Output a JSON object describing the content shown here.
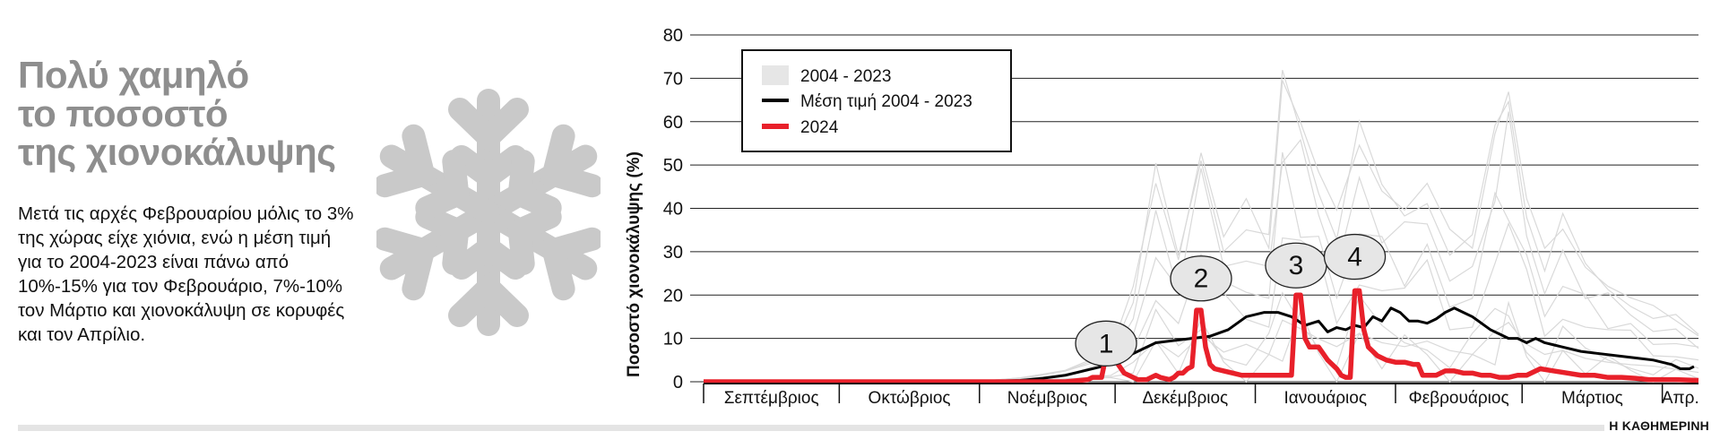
{
  "headline": {
    "line1": "Πολύ χαμηλό",
    "line2": "το ποσοστό",
    "line3": "της χιονοκάλυψης"
  },
  "body_text": "Μετά τις αρχές Φεβρουαρίου μόλις το 3% της χώρας είχε χιόνια, ενώ η μέση τιμή για το 2004-2023 είναι πάνω από 10%-15% για τον Φεβρουάριο, 7%-10% τον Μάρτιο και χιονοκάλυψη σε κορυφές και τον Απρίλιο.",
  "brand": "Η ΚΑΘΗΜΕΡΙΝΗ",
  "icons": {
    "snowflake": "snowflake-icon"
  },
  "colors": {
    "headline": "#8e8e8e",
    "snowflake": "#c9c9c9",
    "series_2024": "#e8202a",
    "mean": "#000000",
    "historical": "#d4d4d4",
    "callout_fill": "#e6e6e6"
  },
  "chart_data": {
    "type": "line",
    "title": "",
    "ylabel": "Ποσοστό χιονοκάλυψης (%)",
    "xlabel": "",
    "ylim": [
      0,
      80
    ],
    "yticks": [
      0,
      10,
      20,
      30,
      40,
      50,
      60,
      70,
      80
    ],
    "grid": true,
    "legend_position": "top-left",
    "x_unit": "days since 1 September",
    "xlim": [
      0,
      220
    ],
    "x_month_boundaries": [
      0,
      30,
      61,
      91,
      122,
      153,
      181,
      212
    ],
    "month_labels": [
      {
        "label": "Σεπτέμβριος",
        "x": 15
      },
      {
        "label": "Οκτώβριος",
        "x": 45.5
      },
      {
        "label": "Νοέμβριος",
        "x": 76
      },
      {
        "label": "Δεκέμβριος",
        "x": 106.5
      },
      {
        "label": "Ιανουάριος",
        "x": 137.5
      },
      {
        "label": "Φεβρουάριος",
        "x": 167
      },
      {
        "label": "Μάρτιος",
        "x": 196.5
      },
      {
        "label": "Απρ.",
        "x": 216
      }
    ],
    "series": [
      {
        "name": "2004 - 2023",
        "style": "band",
        "note": "individual years, light grey lines",
        "x": [
          0,
          60,
          70,
          80,
          90,
          95,
          100,
          105,
          110,
          115,
          120,
          125,
          128,
          132,
          136,
          140,
          145,
          150,
          155,
          160,
          165,
          170,
          175,
          178,
          182,
          186,
          190,
          195,
          200,
          205,
          210,
          215,
          220
        ],
        "values": [
          0,
          0,
          1,
          3,
          8,
          25,
          52,
          32,
          60,
          38,
          48,
          35,
          79,
          68,
          55,
          45,
          62,
          50,
          45,
          52,
          40,
          35,
          65,
          76,
          48,
          35,
          40,
          30,
          25,
          22,
          20,
          16,
          12
        ]
      },
      {
        "name": "Μέση τιμή 2004 - 2023",
        "x": [
          0,
          60,
          70,
          75,
          80,
          84,
          88,
          92,
          96,
          100,
          104,
          108,
          112,
          116,
          120,
          124,
          127,
          130,
          133,
          136,
          138,
          140,
          142,
          144,
          146,
          148,
          150,
          152,
          154,
          156,
          158,
          160,
          162,
          164,
          166,
          168,
          170,
          172,
          174,
          176,
          178,
          180,
          182,
          184,
          186,
          188,
          190,
          194,
          198,
          202,
          206,
          210,
          214,
          216,
          218,
          219
        ],
        "values": [
          0,
          0,
          0.3,
          0.8,
          1.5,
          2.5,
          3.5,
          5,
          7,
          9,
          9.5,
          10,
          10.5,
          12,
          15,
          16,
          16,
          15,
          13,
          14,
          11.5,
          12.5,
          12,
          13,
          12.5,
          15,
          14,
          17,
          16,
          14,
          14,
          13.5,
          14.5,
          16,
          17,
          16,
          15,
          13.5,
          12,
          11,
          10,
          10,
          9,
          10,
          9,
          8.5,
          8,
          7,
          6.5,
          6,
          5.5,
          5,
          4,
          3,
          3,
          3.5
        ]
      },
      {
        "name": "2024",
        "x": [
          0,
          60,
          72,
          80,
          85,
          86,
          87,
          88,
          89,
          90,
          91,
          93,
          96,
          98,
          100,
          101,
          103,
          104,
          105,
          106,
          107,
          108,
          109,
          110,
          111,
          112,
          113,
          115,
          117,
          119,
          121,
          124,
          126,
          127,
          128,
          129,
          130,
          131,
          132,
          133,
          134,
          136,
          138,
          140,
          141,
          142,
          143,
          144,
          145,
          146,
          147,
          149,
          151,
          153,
          155,
          157,
          158,
          159,
          160,
          161,
          162,
          164,
          166,
          168,
          170,
          172,
          174,
          176,
          178,
          180,
          182,
          185,
          188,
          191,
          194,
          197,
          200,
          203,
          206,
          209,
          212,
          215,
          220
        ],
        "values": [
          0,
          0,
          0,
          0,
          0.5,
          1,
          1,
          1,
          6,
          6,
          5,
          2,
          0.5,
          0.5,
          1.5,
          1,
          0.5,
          1,
          2,
          2,
          3,
          3.5,
          16.5,
          16.5,
          8,
          4,
          3,
          2.5,
          2,
          1.5,
          1.5,
          1.5,
          1.5,
          1.5,
          1.5,
          1.5,
          1.5,
          20,
          20,
          10,
          8,
          8,
          5,
          3,
          1.5,
          1,
          1,
          21,
          21,
          12,
          8,
          6,
          5,
          4.5,
          4.5,
          4,
          4,
          1.5,
          1.5,
          1.5,
          1.5,
          2.5,
          2.5,
          2,
          2,
          1.5,
          1.5,
          1,
          1,
          1.5,
          1.5,
          3,
          2.5,
          2,
          1.5,
          1.5,
          1,
          1,
          0.8,
          0.5,
          0.5,
          0.5,
          0.3
        ]
      }
    ],
    "legend": [
      {
        "label": "2004 - 2023",
        "style": "box"
      },
      {
        "label": "Μέση τιμή 2004 - 2023",
        "style": "black-line"
      },
      {
        "label": "2024",
        "style": "red-line"
      }
    ],
    "annotations": [
      {
        "label": "1",
        "x": 89,
        "y": 8
      },
      {
        "label": "2",
        "x": 110,
        "y": 23
      },
      {
        "label": "3",
        "x": 131,
        "y": 26
      },
      {
        "label": "4",
        "x": 144,
        "y": 28
      }
    ]
  }
}
